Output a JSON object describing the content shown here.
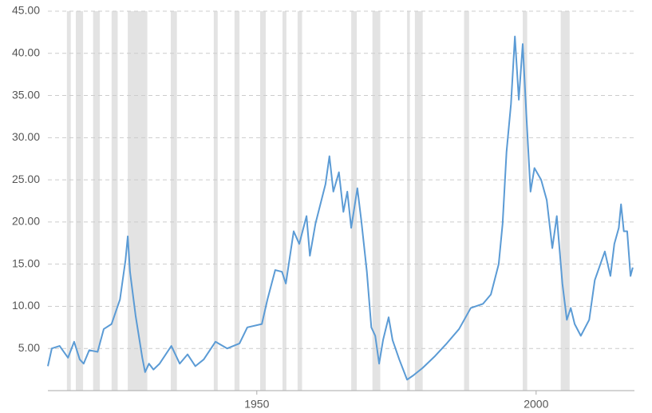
{
  "chart_data": {
    "type": "line",
    "x": [
      1912.6,
      1913.3,
      1914.7,
      1916.2,
      1917.3,
      1918.3,
      1919.0,
      1920.0,
      1921.5,
      1922.6,
      1924.0,
      1925.5,
      1926.5,
      1926.9,
      1927.3,
      1928.3,
      1929.5,
      1930.0,
      1930.7,
      1931.5,
      1932.6,
      1934.7,
      1936.2,
      1937.6,
      1939.0,
      1940.5,
      1942.6,
      1944.7,
      1946.9,
      1948.3,
      1950.9,
      1951.9,
      1953.3,
      1954.5,
      1955.2,
      1956.6,
      1957.6,
      1958.9,
      1959.5,
      1960.5,
      1962.3,
      1963.0,
      1963.7,
      1964.7,
      1965.5,
      1966.2,
      1966.9,
      1968.0,
      1968.7,
      1969.7,
      1970.5,
      1971.2,
      1971.9,
      1972.6,
      1973.6,
      1974.3,
      1975.5,
      1976.9,
      1978.0,
      1979.7,
      1981.9,
      1984.0,
      1986.2,
      1988.3,
      1990.5,
      1991.9,
      1993.3,
      1994.0,
      1994.7,
      1995.5,
      1996.2,
      1996.9,
      1997.6,
      1998.3,
      1999.0,
      1999.7,
      2000.9,
      2001.9,
      2002.9,
      2003.7,
      2004.7,
      2005.5,
      2006.2,
      2006.9,
      2008.0,
      2009.5,
      2010.5,
      2011.5,
      2012.3,
      2013.3,
      2014.0,
      2014.8,
      2015.2,
      2015.7,
      2016.3,
      2016.9,
      2017.3
    ],
    "series": [
      {
        "color": "#5b9bd5",
        "values": [
          2.9,
          5.0,
          5.3,
          3.9,
          5.8,
          3.7,
          3.2,
          4.8,
          4.6,
          7.3,
          7.9,
          10.8,
          15.5,
          18.3,
          14.1,
          8.9,
          3.9,
          2.2,
          3.2,
          2.5,
          3.2,
          5.3,
          3.2,
          4.3,
          2.9,
          3.7,
          5.8,
          5.0,
          5.6,
          7.5,
          7.9,
          10.8,
          14.3,
          14.1,
          12.7,
          18.9,
          17.4,
          20.7,
          16.0,
          19.8,
          24.5,
          27.8,
          23.6,
          25.9,
          21.2,
          23.6,
          19.3,
          24.0,
          20.2,
          14.1,
          7.5,
          6.5,
          3.2,
          6.0,
          8.7,
          6.0,
          3.7,
          1.3,
          1.8,
          2.7,
          4.1,
          5.6,
          7.3,
          9.8,
          10.3,
          11.4,
          15.0,
          19.8,
          28.3,
          34.0,
          42.0,
          34.5,
          41.1,
          32.1,
          23.6,
          26.4,
          25.0,
          22.6,
          16.9,
          20.7,
          12.7,
          8.4,
          9.8,
          7.9,
          6.5,
          8.4,
          13.1,
          15.0,
          16.5,
          13.6,
          17.4,
          19.3,
          22.1,
          18.9,
          18.9,
          13.6,
          14.6
        ]
      }
    ],
    "recessions": [
      [
        1916.0,
        1916.7
      ],
      [
        1917.6,
        1918.9
      ],
      [
        1920.7,
        1921.9
      ],
      [
        1924.0,
        1925.1
      ],
      [
        1926.9,
        1930.4
      ],
      [
        1934.6,
        1935.7
      ],
      [
        1942.3,
        1943.0
      ],
      [
        1946.0,
        1946.9
      ],
      [
        1950.6,
        1951.6
      ],
      [
        1954.6,
        1955.3
      ],
      [
        1957.3,
        1958.1
      ],
      [
        1966.9,
        1967.9
      ],
      [
        1970.7,
        1972.1
      ],
      [
        1976.9,
        1977.4
      ],
      [
        1978.3,
        1979.7
      ],
      [
        1987.1,
        1988.0
      ],
      [
        1997.6,
        1998.4
      ],
      [
        2004.4,
        2006.0
      ]
    ],
    "recession_color": "#e3e3e3",
    "xlim": [
      1912.6,
      2017.6
    ],
    "ylim": [
      0,
      45
    ],
    "xticks": [
      1950,
      2000
    ],
    "yticks": [
      {
        "value": 5,
        "label": "5.00"
      },
      {
        "value": 10,
        "label": "10.00"
      },
      {
        "value": 15,
        "label": "15.00"
      },
      {
        "value": 20,
        "label": "20.00"
      },
      {
        "value": 25,
        "label": "25.00"
      },
      {
        "value": 30,
        "label": "30.00"
      },
      {
        "value": 35,
        "label": "35.00"
      },
      {
        "value": 40,
        "label": "40.00"
      },
      {
        "value": 45,
        "label": "45.00"
      }
    ],
    "grid": true
  }
}
